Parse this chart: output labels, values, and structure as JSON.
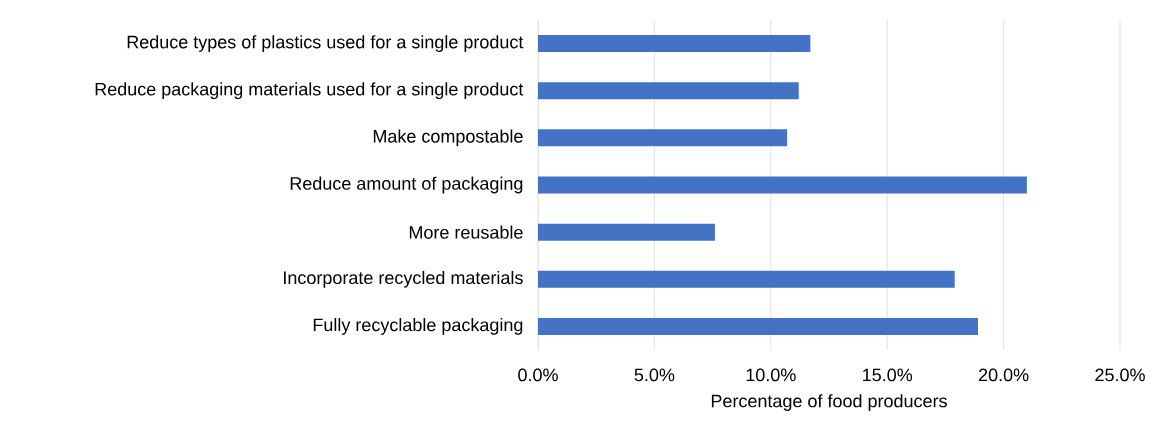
{
  "chart_data": {
    "type": "bar",
    "orientation": "horizontal",
    "xlabel": "Percentage of food producers",
    "categories": [
      "Reduce types of plastics used for a single product",
      "Reduce packaging materials used for a single product",
      "Make compostable",
      "Reduce amount of packaging",
      "More reusable",
      "Incorporate recycled materials",
      "Fully recyclable packaging"
    ],
    "values": [
      11.7,
      11.2,
      10.7,
      21.0,
      7.6,
      17.9,
      18.9
    ],
    "color": "#4472c4",
    "xlim": [
      0,
      25
    ],
    "xticks": [
      {
        "value": 0,
        "label": "0.0%"
      },
      {
        "value": 5,
        "label": "5.0%"
      },
      {
        "value": 10,
        "label": "10.0%"
      },
      {
        "value": 15,
        "label": "15.0%"
      },
      {
        "value": 20,
        "label": "20.0%"
      },
      {
        "value": 25,
        "label": "25.0%"
      }
    ],
    "grid": "x",
    "legend": false
  }
}
